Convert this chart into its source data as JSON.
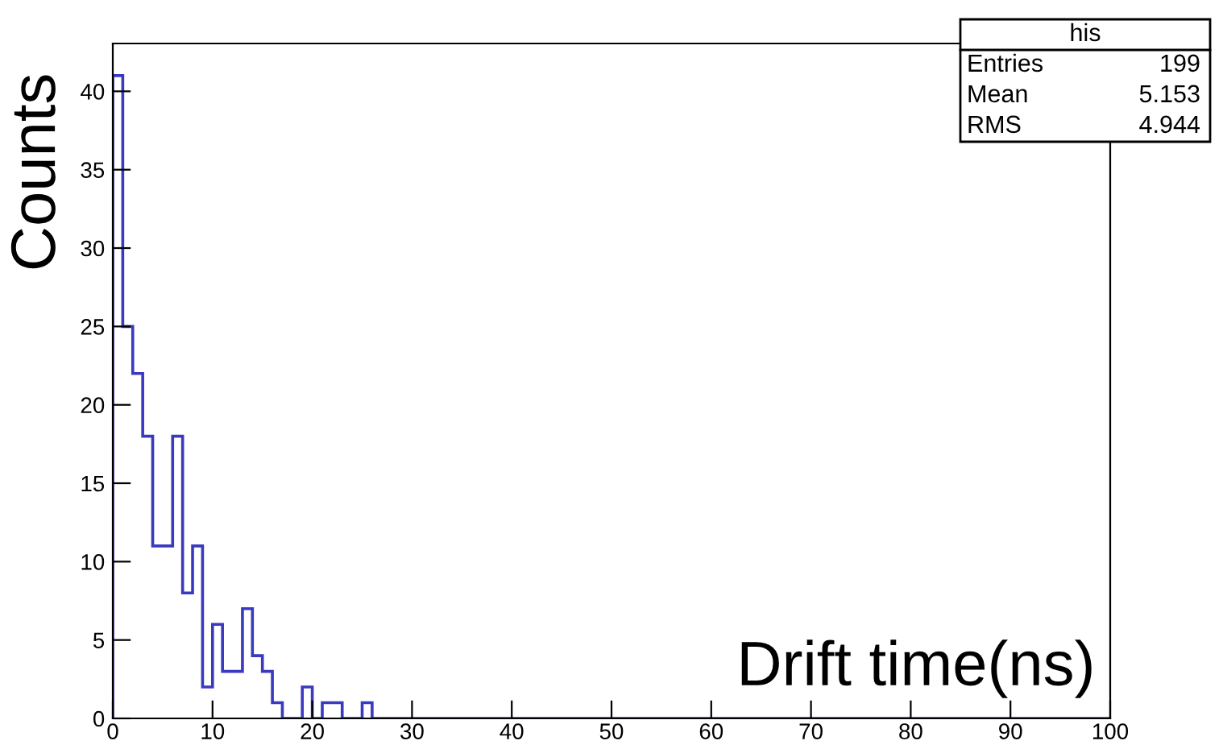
{
  "chart_data": {
    "type": "histogram",
    "xlabel": "Drift time(ns)",
    "ylabel": "Counts",
    "bins": [
      0,
      1,
      2,
      3,
      4,
      5,
      6,
      7,
      8,
      9,
      10,
      11,
      12,
      13,
      14,
      15,
      16,
      17,
      18,
      19,
      20,
      21,
      22,
      23,
      24,
      25,
      26,
      27,
      28,
      29,
      30,
      31,
      32,
      33,
      34,
      35,
      36,
      37,
      38,
      39,
      40,
      41,
      42,
      43,
      44,
      45,
      46,
      47,
      48,
      49,
      50,
      51,
      52,
      53,
      54,
      55,
      56,
      57,
      58,
      59,
      60,
      61,
      62,
      63,
      64,
      65,
      66,
      67,
      68,
      69,
      70,
      71,
      72,
      73,
      74,
      75,
      76,
      77,
      78,
      79,
      80,
      81,
      82,
      83,
      84,
      85,
      86,
      87,
      88,
      89,
      90,
      91,
      92,
      93,
      94,
      95,
      96,
      97,
      98,
      99,
      100
    ],
    "values": [
      41,
      25,
      22,
      18,
      11,
      11,
      18,
      8,
      11,
      2,
      6,
      3,
      3,
      7,
      4,
      3,
      1,
      0,
      0,
      2,
      0,
      1,
      1,
      0,
      0,
      1,
      0,
      0,
      0,
      0,
      0,
      0,
      0,
      0,
      0,
      0,
      0,
      0,
      0,
      0,
      0,
      0,
      0,
      0,
      0,
      0,
      0,
      0,
      0,
      0,
      0,
      0,
      0,
      0,
      0,
      0,
      0,
      0,
      0,
      0,
      0,
      0,
      0,
      0,
      0,
      0,
      0,
      0,
      0,
      0,
      0,
      0,
      0,
      0,
      0,
      0,
      0,
      0,
      0,
      0,
      0,
      0,
      0,
      0,
      0,
      0,
      0,
      0,
      0,
      0,
      0,
      0,
      0,
      0,
      0,
      0,
      0,
      0,
      0,
      0
    ],
    "color": "#3a3ac0",
    "xlim": [
      0,
      100
    ],
    "xticks": [
      0,
      10,
      20,
      30,
      40,
      50,
      60,
      70,
      80,
      90,
      100
    ],
    "ylim": [
      0,
      43.05
    ],
    "yticks": [
      0,
      5,
      10,
      15,
      20,
      25,
      30,
      35,
      40
    ],
    "grid": false,
    "annotations": [
      "his",
      "Entries",
      "199",
      "Mean",
      "5.153",
      "RMS",
      "4.944"
    ]
  }
}
